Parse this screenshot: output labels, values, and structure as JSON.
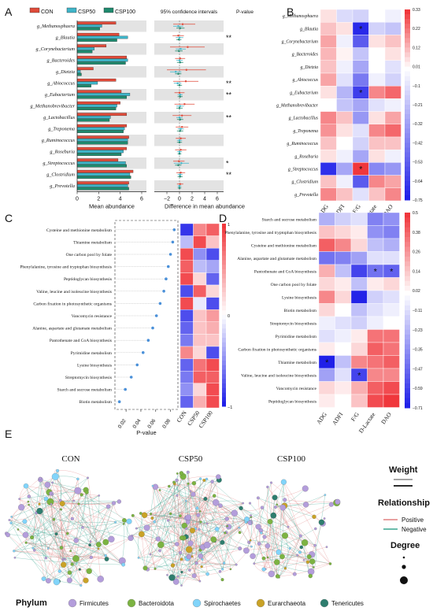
{
  "panels": {
    "A": "A",
    "B": "B",
    "C": "C",
    "D": "D",
    "E": "E"
  },
  "chart_data": [
    {
      "panel": "A",
      "type": "bar",
      "legend": [
        "CON",
        "CSP50",
        "CSP100"
      ],
      "colors": {
        "CON": "#e04b3a",
        "CSP50": "#3fb5c9",
        "CSP100": "#1f8a6e"
      },
      "categories": [
        "g_Methanosphaera",
        "g_Blautia",
        "g_Corynebacterium",
        "g_Bacteroides",
        "g_Dietzia",
        "g_Abiococcus",
        "g_Eubacterium",
        "g_Methanobrevibacter",
        "g_Lactobacillus",
        "g_Treponema",
        "g_Ruminococcus",
        "g_Roseburia",
        "g_Streptococcus",
        "g_Clostridium",
        "g_Prevotella"
      ],
      "series": [
        {
          "name": "CON",
          "values": [
            3.6,
            3.9,
            2.7,
            4.6,
            1.5,
            3.6,
            4.1,
            4.0,
            4.6,
            4.6,
            4.8,
            4.6,
            3.8,
            5.2,
            4.8
          ]
        },
        {
          "name": "CSP50",
          "values": [
            2.3,
            4.7,
            1.6,
            4.7,
            0.3,
            1.9,
            4.9,
            3.7,
            3.1,
            4.4,
            4.7,
            4.3,
            4.5,
            4.9,
            4.7
          ]
        },
        {
          "name": "CSP100",
          "values": [
            2.1,
            3.7,
            1.4,
            4.5,
            0.4,
            1.3,
            4.6,
            3.6,
            3.0,
            4.3,
            4.7,
            4.1,
            4.6,
            5.0,
            4.8
          ]
        }
      ],
      "xlim": [
        0,
        6
      ],
      "xticks": [
        "0",
        "2",
        "4",
        "6"
      ],
      "xlabel": "Mean abundance",
      "ci_title": "95% confidence intervals",
      "ci_xlabel": "Difference in mean abundance",
      "ci_xticks": [
        "−2",
        "0",
        "2",
        "4",
        "6"
      ],
      "ci_xlim": [
        -4,
        7
      ],
      "ci": [
        {
          "red": [
            0.5,
            -1.0,
            2.5
          ],
          "blue": [
            -0.2,
            -1.0,
            0.6
          ],
          "green": [
            0.1,
            -0.5,
            0.8
          ]
        },
        {
          "red": [
            -0.2,
            -1.1,
            0.7
          ],
          "blue": [
            0.0,
            -0.6,
            0.6
          ],
          "green": [
            -0.1,
            -0.5,
            0.3
          ]
        },
        {
          "red": [
            1.3,
            -1.5,
            4.0
          ],
          "blue": [
            0.2,
            -0.6,
            1.0
          ],
          "green": [
            -0.1,
            -0.7,
            0.5
          ]
        },
        {
          "red": [
            0.1,
            -0.7,
            0.9
          ],
          "blue": [
            0.0,
            -0.5,
            0.5
          ],
          "green": [
            0.1,
            -0.4,
            0.6
          ]
        },
        {
          "red": [
            1.1,
            -2.0,
            4.2
          ],
          "blue": [
            -0.6,
            -1.5,
            0.3
          ],
          "green": [
            -0.2,
            -0.7,
            0.3
          ]
        },
        {
          "red": [
            1.0,
            -1.0,
            3.0
          ],
          "blue": [
            -0.3,
            -0.9,
            0.3
          ],
          "green": [
            0.0,
            -0.4,
            0.4
          ]
        },
        {
          "red": [
            0.0,
            -0.8,
            0.8
          ],
          "blue": [
            0.1,
            -0.3,
            0.5
          ],
          "green": [
            0.1,
            -0.3,
            0.5
          ]
        },
        {
          "red": [
            0.8,
            -0.8,
            2.4
          ],
          "blue": [
            0.1,
            -0.5,
            0.7
          ],
          "green": [
            0.0,
            -0.5,
            0.5
          ]
        },
        {
          "red": [
            0.4,
            -1.1,
            1.9
          ],
          "blue": [
            0.0,
            -0.5,
            0.5
          ],
          "green": [
            0.1,
            -0.4,
            0.6
          ]
        },
        {
          "red": [
            0.4,
            -0.6,
            1.4
          ],
          "blue": [
            0.2,
            -0.3,
            0.7
          ],
          "green": [
            0.1,
            -0.4,
            0.6
          ]
        },
        {
          "red": [
            0.2,
            -0.6,
            1.0
          ],
          "blue": [
            0.0,
            -0.4,
            0.4
          ],
          "green": [
            0.0,
            -0.4,
            0.4
          ]
        },
        {
          "red": [
            0.2,
            -0.7,
            1.1
          ],
          "blue": [
            0.0,
            -0.4,
            0.4
          ],
          "green": [
            0.0,
            -0.3,
            0.3
          ]
        },
        {
          "red": [
            -0.1,
            -1.0,
            0.8
          ],
          "blue": [
            0.3,
            -0.9,
            1.5
          ],
          "green": [
            -0.2,
            -0.7,
            0.3
          ]
        },
        {
          "red": [
            0.2,
            -0.5,
            0.9
          ],
          "blue": [
            0.1,
            -0.3,
            0.5
          ],
          "green": [
            0.1,
            -0.3,
            0.5
          ]
        },
        {
          "red": [
            0.1,
            -0.4,
            0.6
          ],
          "blue": [
            0.0,
            -0.3,
            0.3
          ],
          "green": [
            0.0,
            -0.3,
            0.3
          ]
        }
      ],
      "pvalue_label": "P-value",
      "significance": [
        "",
        "**",
        "",
        "",
        "",
        "**",
        "**",
        "",
        "**",
        "",
        "",
        "",
        "*",
        "**",
        ""
      ],
      "shaded_rows": [
        0,
        2,
        4,
        6,
        8,
        10,
        12,
        14
      ]
    },
    {
      "panel": "B",
      "type": "heatmap",
      "rows": [
        "g_Methanosphaera",
        "g_Blautia",
        "g_Corynebacterium",
        "g_Bacteroides",
        "g_Dietzia",
        "g_Abiococcus",
        "g_Eubacterium",
        "g_Methanobrevibacter",
        "g_Lactobacillus",
        "g_Treponema",
        "g_Ruminococcus",
        "g_Roseburia",
        "g_Streptococcus",
        "g_Clostridium",
        "g_Prevotella"
      ],
      "columns": [
        "ADG",
        "ADFI",
        "F/G",
        "D-Lactate",
        "DAO"
      ],
      "values": [
        [
          0.05,
          -0.12,
          -0.15,
          0.0,
          -0.05
        ],
        [
          0.1,
          0.05,
          -0.72,
          -0.15,
          -0.2
        ],
        [
          0.15,
          -0.05,
          -0.55,
          0.05,
          0.1
        ],
        [
          0.12,
          0.02,
          -0.2,
          0.0,
          0.05
        ],
        [
          0.1,
          -0.05,
          -0.3,
          0.0,
          -0.1
        ],
        [
          0.15,
          -0.1,
          -0.45,
          -0.05,
          -0.15
        ],
        [
          0.05,
          -0.25,
          -0.65,
          0.2,
          0.25
        ],
        [
          0.0,
          -0.2,
          -0.3,
          -0.1,
          -0.05
        ],
        [
          0.2,
          0.1,
          -0.35,
          0.05,
          0.15
        ],
        [
          0.18,
          0.05,
          -0.1,
          0.2,
          0.25
        ],
        [
          0.1,
          0.0,
          -0.15,
          0.1,
          0.1
        ],
        [
          0.05,
          -0.05,
          -0.3,
          0.05,
          -0.05
        ],
        [
          -0.7,
          -0.3,
          0.33,
          -0.4,
          -0.35
        ],
        [
          0.1,
          -0.05,
          -0.55,
          0.2,
          0.15
        ],
        [
          0.2,
          0.1,
          -0.1,
          0.1,
          0.2
        ]
      ],
      "stars": [
        [
          1,
          2
        ],
        [
          6,
          2
        ],
        [
          12,
          2
        ]
      ],
      "scale_labels": [
        "0.33",
        "0.22",
        "0.12",
        "0.01",
        "−0.1",
        "−0.21",
        "−0.32",
        "−0.42",
        "−0.53",
        "−0.64",
        "−0.75"
      ]
    },
    {
      "panel": "C",
      "type": "scatter",
      "categories": [
        "Cysteine and methionine metabolism",
        "Thiamine metabolism",
        "One carbon pool by folate",
        "Phenylalanine, tyrosine and tryptophan biosynthesis",
        "Peptidoglycan biosynthesis",
        "Valine, leucine and isoleucine biosynthesis",
        "Carbon fixation in photosynthetic organisms",
        "Vancomycin resistance",
        "Alanine, aspartate and glutamate metabolism",
        "Pantothenate and CoA biosynthesis",
        "Pyrimidine metabolism",
        "Lysine biosynthesis",
        "Streptomycin biosynthesis",
        "Starch and sucrose metabolism",
        "Biotin metabolism"
      ],
      "values": [
        0.085,
        0.083,
        0.08,
        0.077,
        0.074,
        0.071,
        0.066,
        0.061,
        0.056,
        0.05,
        0.043,
        0.035,
        0.027,
        0.019,
        0.011
      ],
      "xticks": [
        "0.02",
        "0.04",
        "0.06",
        "0.08"
      ],
      "xlim": [
        0.005,
        0.09
      ],
      "xlabel": "P-value",
      "heat_columns": [
        "CON",
        "CSP50",
        "CSP100"
      ],
      "heat_values": [
        [
          -0.9,
          0.6,
          0.8
        ],
        [
          -0.3,
          0.9,
          0.3
        ],
        [
          0.9,
          -0.5,
          -0.8
        ],
        [
          0.8,
          -0.3,
          -0.4
        ],
        [
          0.9,
          0.2,
          -0.7
        ],
        [
          -0.8,
          0.8,
          0.2
        ],
        [
          0.9,
          -0.1,
          -0.8
        ],
        [
          -0.8,
          0.3,
          0.5
        ],
        [
          -0.7,
          0.3,
          0.4
        ],
        [
          -0.6,
          0.3,
          0.3
        ],
        [
          0.6,
          0.2,
          -0.8
        ],
        [
          -0.7,
          0.7,
          0.9
        ],
        [
          -0.6,
          0.8,
          0.8
        ],
        [
          -0.5,
          0.2,
          0.9
        ],
        [
          -0.7,
          0.4,
          0.9
        ]
      ],
      "scale_labels": [
        "1",
        "0",
        "−1"
      ]
    },
    {
      "panel": "D",
      "type": "heatmap",
      "rows": [
        "Starch and sucrose metabolism",
        "Phenylalanine, tyrosine and tryptophan biosynthesis",
        "Cysteine and methionine metabolism",
        "Alanine, aspartate and glutamate metabolism",
        "Pantothenate and CoA biosynthesis",
        "One carbon pool by folate",
        "Lysine biosynthesis",
        "Biotin metabolism",
        "Streptomycin biosynthesis",
        "Pyrimidine metabolism",
        "Carbon fixation in photosynthetic organisms",
        "Thiamine metabolism",
        "Valine, leucine and isoleucine biosynthesis",
        "Vancomycin resistance",
        "Peptidoglycan biosynthesis"
      ],
      "columns": [
        "ADG",
        "ADFI",
        "F/G",
        "D-Lactate",
        "DAO"
      ],
      "values": [
        [
          -0.25,
          -0.15,
          -0.1,
          -0.4,
          -0.35
        ],
        [
          0.15,
          0.1,
          0.05,
          -0.35,
          -0.4
        ],
        [
          0.4,
          0.3,
          0.1,
          -0.2,
          -0.25
        ],
        [
          -0.45,
          -0.4,
          -0.3,
          -0.1,
          -0.1
        ],
        [
          0.2,
          -0.2,
          -0.6,
          -0.45,
          -0.5
        ],
        [
          0.1,
          0.05,
          -0.2,
          0.05,
          0.1
        ],
        [
          0.3,
          0.1,
          -0.7,
          -0.15,
          -0.1
        ],
        [
          0.1,
          0.0,
          -0.2,
          -0.1,
          -0.05
        ],
        [
          -0.05,
          -0.1,
          -0.15,
          -0.05,
          0.0
        ],
        [
          -0.1,
          -0.05,
          0.05,
          0.35,
          0.35
        ],
        [
          0.05,
          0.0,
          0.1,
          0.4,
          0.35
        ],
        [
          -0.71,
          -0.2,
          0.3,
          0.35,
          0.4
        ],
        [
          -0.3,
          -0.1,
          -0.6,
          0.3,
          0.3
        ],
        [
          0.1,
          0.05,
          0.2,
          0.4,
          0.45
        ],
        [
          0.05,
          0.0,
          0.15,
          0.45,
          0.5
        ]
      ],
      "stars": [
        [
          4,
          3
        ],
        [
          4,
          4
        ],
        [
          11,
          0
        ],
        [
          12,
          2
        ]
      ],
      "scale_labels": [
        "0.5",
        "0.38",
        "0.26",
        "0.14",
        "0.02",
        "−0.11",
        "−0.23",
        "−0.35",
        "−0.47",
        "−0.59",
        "−0.71"
      ]
    }
  ],
  "network": {
    "titles": [
      "CON",
      "CSP50",
      "CSP100"
    ],
    "weight_label": "Weight",
    "relationship_label": "Relationship",
    "positive_label": "Positive",
    "negative_label": "Negative",
    "degree_label": "Degree",
    "phylum_label": "Phylum",
    "phyla": [
      {
        "name": "Firmicutes",
        "color": "#b39ddb"
      },
      {
        "name": "Bacteroidota",
        "color": "#7cb342"
      },
      {
        "name": "Spirochaetes",
        "color": "#81d4fa"
      },
      {
        "name": "Eurarchaeota",
        "color": "#c9a227"
      },
      {
        "name": "Tenericutes",
        "color": "#2e7d6e"
      }
    ],
    "positive_color": "#e08080",
    "negative_color": "#3aa58f"
  }
}
